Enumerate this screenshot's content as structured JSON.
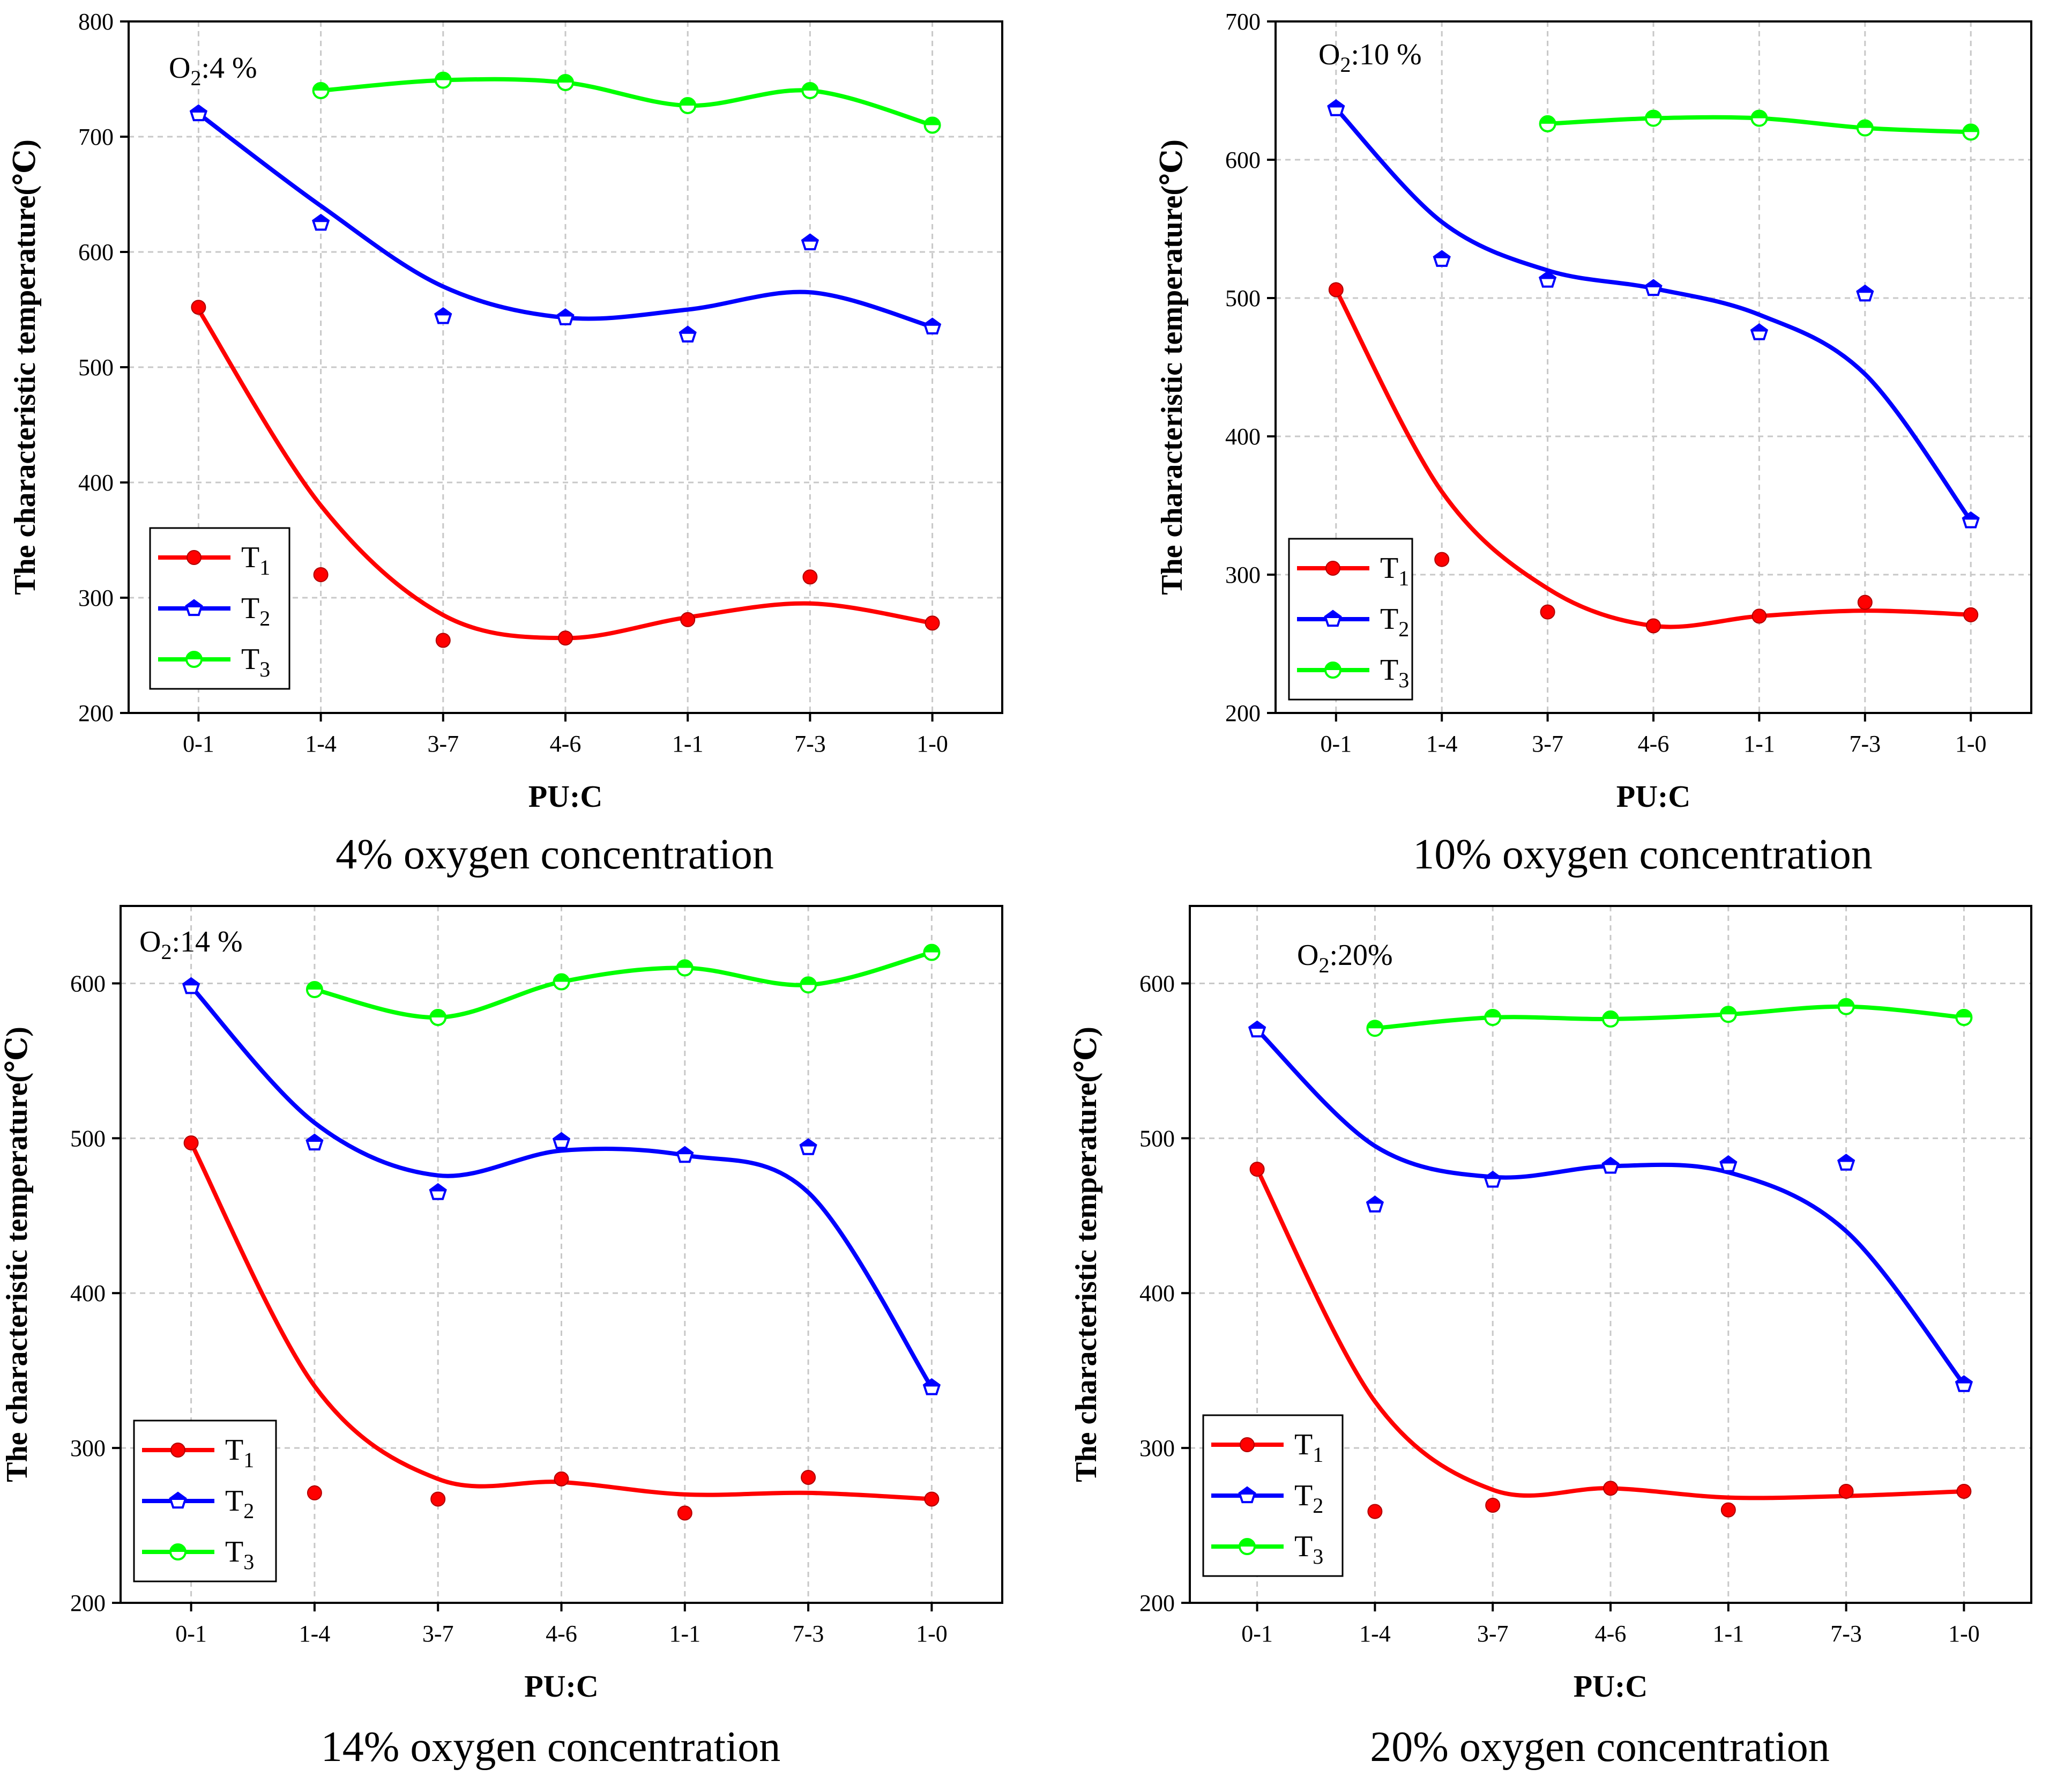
{
  "chart_data": [
    {
      "type": "line",
      "caption": "4% oxygen concentration",
      "annotation": {
        "prefix": "O",
        "sub": "2",
        "suffix": ":4 %"
      },
      "xlabel": "PU:C",
      "ylabel": "The characteristic temperature(℃)",
      "categories": [
        "0-1",
        "1-4",
        "3-7",
        "4-6",
        "1-1",
        "7-3",
        "1-0"
      ],
      "ylim": [
        200,
        800
      ],
      "yticks": [
        200,
        300,
        400,
        500,
        600,
        700,
        800
      ],
      "grid": true,
      "legend": "bottom-left",
      "series": [
        {
          "name": "T",
          "sub": "1",
          "color": "#ff0000",
          "marker": "circle",
          "values": [
            552,
            320,
            263,
            265,
            281,
            318,
            278
          ],
          "fit": [
            550,
            380,
            285,
            265,
            283,
            295,
            278
          ]
        },
        {
          "name": "T",
          "sub": "2",
          "color": "#0000ff",
          "marker": "pentagon",
          "values": [
            720,
            625,
            544,
            543,
            528,
            608,
            535
          ],
          "fit": [
            720,
            640,
            570,
            543,
            550,
            565,
            535
          ]
        },
        {
          "name": "T",
          "sub": "3",
          "color": "#00ff00",
          "marker": "half-circle",
          "values": [
            null,
            740,
            749,
            747,
            727,
            740,
            710
          ],
          "fit": [
            null,
            740,
            749,
            747,
            727,
            740,
            710
          ]
        }
      ]
    },
    {
      "type": "line",
      "caption": "10% oxygen concentration",
      "annotation": {
        "prefix": "O",
        "sub": "2",
        "suffix": ":10 %"
      },
      "xlabel": "PU:C",
      "ylabel": "The characteristic temperature(℃)",
      "categories": [
        "0-1",
        "1-4",
        "3-7",
        "4-6",
        "1-1",
        "7-3",
        "1-0"
      ],
      "ylim": [
        200,
        700
      ],
      "yticks": [
        200,
        300,
        400,
        500,
        600,
        700
      ],
      "grid": true,
      "legend": "bottom-left",
      "series": [
        {
          "name": "T",
          "sub": "1",
          "color": "#ff0000",
          "marker": "circle",
          "values": [
            506,
            311,
            273,
            263,
            270,
            280,
            271
          ],
          "fit": [
            506,
            360,
            290,
            263,
            270,
            274,
            271
          ]
        },
        {
          "name": "T",
          "sub": "2",
          "color": "#0000ff",
          "marker": "pentagon",
          "values": [
            637,
            528,
            513,
            507,
            475,
            503,
            339
          ],
          "fit": [
            637,
            555,
            520,
            507,
            488,
            445,
            339
          ]
        },
        {
          "name": "T",
          "sub": "3",
          "color": "#00ff00",
          "marker": "half-circle",
          "values": [
            null,
            null,
            626,
            630,
            630,
            623,
            620
          ],
          "fit": [
            null,
            null,
            626,
            630,
            630,
            623,
            620
          ]
        }
      ]
    },
    {
      "type": "line",
      "caption": "14% oxygen concentration",
      "annotation": {
        "prefix": "O",
        "sub": "2",
        "suffix": ":14 %"
      },
      "xlabel": "PU:C",
      "ylabel": "The characteristic temperature(℃)",
      "categories": [
        "0-1",
        "1-4",
        "3-7",
        "4-6",
        "1-1",
        "7-3",
        "1-0"
      ],
      "ylim": [
        200,
        650
      ],
      "yticks": [
        200,
        300,
        400,
        500,
        600
      ],
      "grid": true,
      "legend": "bottom-left",
      "series": [
        {
          "name": "T",
          "sub": "1",
          "color": "#ff0000",
          "marker": "circle",
          "values": [
            497,
            271,
            267,
            280,
            258,
            281,
            267
          ],
          "fit": [
            497,
            340,
            280,
            278,
            270,
            271,
            267
          ]
        },
        {
          "name": "T",
          "sub": "2",
          "color": "#0000ff",
          "marker": "pentagon",
          "values": [
            598,
            497,
            465,
            498,
            489,
            494,
            339
          ],
          "fit": [
            598,
            510,
            476,
            492,
            489,
            465,
            339
          ]
        },
        {
          "name": "T",
          "sub": "3",
          "color": "#00ff00",
          "marker": "half-circle",
          "values": [
            null,
            596,
            578,
            601,
            610,
            599,
            620
          ],
          "fit": [
            null,
            596,
            578,
            601,
            610,
            599,
            620
          ]
        }
      ]
    },
    {
      "type": "line",
      "caption": "20% oxygen concentration",
      "annotation": {
        "prefix": "O",
        "sub": "2",
        "suffix": ":20%"
      },
      "xlabel": "PU:C",
      "ylabel": "The characteristic temperature(℃)",
      "categories": [
        "0-1",
        "1-4",
        "3-7",
        "4-6",
        "1-1",
        "7-3",
        "1-0"
      ],
      "ylim": [
        200,
        650
      ],
      "yticks": [
        200,
        300,
        400,
        500,
        600
      ],
      "grid": true,
      "legend": "bottom-left",
      "series": [
        {
          "name": "T",
          "sub": "1",
          "color": "#ff0000",
          "marker": "circle",
          "values": [
            480,
            259,
            263,
            274,
            260,
            272,
            272
          ],
          "fit": [
            480,
            330,
            273,
            274,
            268,
            269,
            272
          ]
        },
        {
          "name": "T",
          "sub": "2",
          "color": "#0000ff",
          "marker": "pentagon",
          "values": [
            570,
            457,
            473,
            482,
            483,
            484,
            341
          ],
          "fit": [
            570,
            495,
            475,
            482,
            478,
            440,
            341
          ]
        },
        {
          "name": "T",
          "sub": "3",
          "color": "#00ff00",
          "marker": "half-circle",
          "values": [
            null,
            571,
            578,
            577,
            580,
            585,
            578
          ],
          "fit": [
            null,
            571,
            578,
            577,
            580,
            585,
            578
          ]
        }
      ]
    }
  ]
}
